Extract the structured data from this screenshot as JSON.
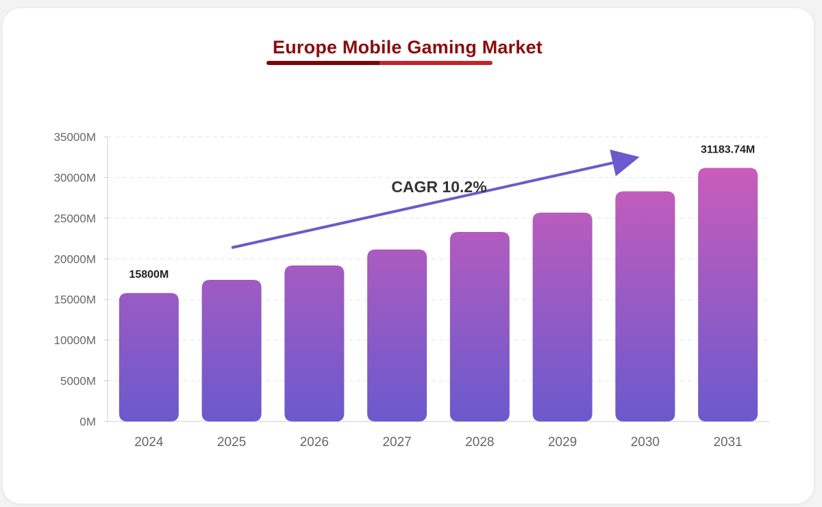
{
  "chart_data": {
    "type": "bar",
    "title": "Europe Mobile Gaming Market",
    "xlabel": "",
    "ylabel": "",
    "categories": [
      "2024",
      "2025",
      "2026",
      "2027",
      "2028",
      "2029",
      "2030",
      "2031"
    ],
    "values": [
      15800,
      17411.6,
      19187.6,
      21144.7,
      23301.5,
      25678.2,
      28297.4,
      31183.74
    ],
    "ylim": [
      0,
      35000
    ],
    "yticks": [
      0,
      5000,
      10000,
      15000,
      20000,
      25000,
      30000,
      35000
    ],
    "ytick_labels": [
      "0M",
      "5000M",
      "10000M",
      "15000M",
      "20000M",
      "25000M",
      "30000M",
      "35000M"
    ],
    "data_labels": [
      {
        "category": "2024",
        "text": "15800M"
      },
      {
        "category": "2031",
        "text": "31183.74M"
      }
    ],
    "annotation": {
      "text": "CAGR 10.2%",
      "type": "arrow"
    },
    "grid": true,
    "colors": {
      "bar_top": "#d65cb8",
      "bar_bottom": "#6a5acd",
      "arrow": "#6a5acd",
      "title": "#8b0d0d",
      "underline_left": "#7a0606",
      "underline_right": "#c0262c"
    }
  }
}
